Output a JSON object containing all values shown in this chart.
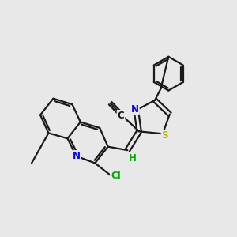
{
  "background_color": "#e8e8e8",
  "bond_color": "#1a1a1a",
  "atom_colors": {
    "N": "#0000ff",
    "S": "#b8b800",
    "Cl": "#00aa00",
    "C": "#1a1a1a",
    "H": "#00aa00"
  },
  "figsize": [
    3.0,
    3.0
  ],
  "dpi": 100
}
